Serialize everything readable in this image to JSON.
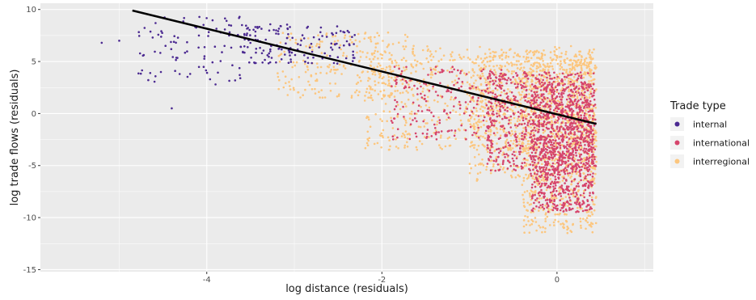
{
  "chart_data": {
    "type": "scatter",
    "title": "",
    "xlabel": "log distance (residuals)",
    "ylabel": "log trade flows (residuals)",
    "xlim": [
      -5.9,
      1.1
    ],
    "ylim": [
      -15.2,
      10.6
    ],
    "x_ticks": [
      -4,
      -2,
      0
    ],
    "y_ticks": [
      -15,
      -10,
      -5,
      0,
      5,
      10
    ],
    "grid": true,
    "legend": {
      "title": "Trade type",
      "position": "right",
      "entries": [
        {
          "name": "internal",
          "color": "#4b2991"
        },
        {
          "name": "international",
          "color": "#d6456c"
        },
        {
          "name": "interregional",
          "color": "#fcc67e"
        }
      ]
    },
    "series": [
      {
        "name": "interregional",
        "color": "#fcc67e",
        "clusters": [
          {
            "x": [
              -3.2,
              -1.6
            ],
            "y": [
              1.5,
              7.8
            ],
            "n": 250
          },
          {
            "x": [
              -2.2,
              0.45
            ],
            "y": [
              -3.5,
              6.5
            ],
            "n": 700
          },
          {
            "x": [
              -1.0,
              0.45
            ],
            "y": [
              -6.5,
              6.0
            ],
            "n": 700
          },
          {
            "x": [
              -0.4,
              0.45
            ],
            "y": [
              -11.5,
              5.5
            ],
            "n": 650
          }
        ]
      },
      {
        "name": "international",
        "color": "#d6456c",
        "clusters": [
          {
            "x": [
              -1.9,
              -0.6
            ],
            "y": [
              -2.5,
              4.5
            ],
            "n": 200
          },
          {
            "x": [
              -0.8,
              0.45
            ],
            "y": [
              -5.5,
              4.0
            ],
            "n": 650
          },
          {
            "x": [
              -0.3,
              0.42
            ],
            "y": [
              -9.5,
              3.0
            ],
            "n": 900
          }
        ]
      },
      {
        "name": "internal",
        "color": "#4b2991",
        "clusters": [
          {
            "x": [
              -4.8,
              -3.6
            ],
            "y": [
              3.0,
              9.3
            ],
            "n": 90
          },
          {
            "x": [
              -3.6,
              -2.3
            ],
            "y": [
              4.8,
              8.6
            ],
            "n": 150
          }
        ],
        "points": [
          {
            "x": -5.2,
            "y": 6.8
          },
          {
            "x": -5.0,
            "y": 7.0
          },
          {
            "x": -4.4,
            "y": 0.5
          },
          {
            "x": -3.9,
            "y": 2.8
          }
        ]
      }
    ],
    "fit_line": {
      "x": [
        -4.85,
        0.45
      ],
      "y": [
        9.9,
        -1.0
      ],
      "color": "#000000"
    }
  }
}
